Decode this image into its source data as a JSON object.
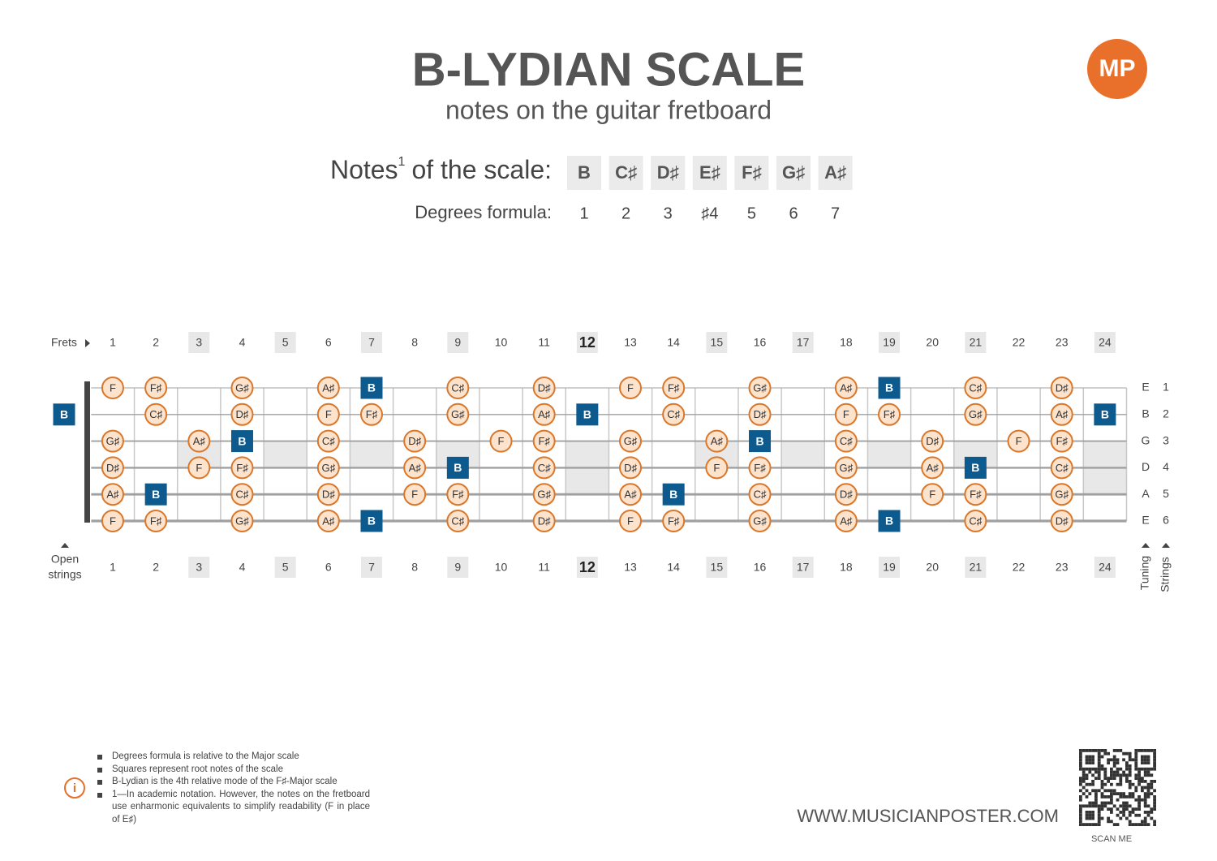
{
  "header": {
    "title": "B-LYDIAN SCALE",
    "subtitle": "notes on the guitar fretboard",
    "logo": "MP"
  },
  "scale": {
    "notes_label": "Notes",
    "notes_label_sup": "1",
    "notes_label_rest": "of the scale:",
    "notes": [
      "B",
      "C♯",
      "D♯",
      "E♯",
      "F♯",
      "G♯",
      "A♯"
    ],
    "degrees_label": "Degrees formula:",
    "degrees": [
      "1",
      "2",
      "3",
      "♯4",
      "5",
      "6",
      "7"
    ]
  },
  "fretboard": {
    "frets_label": "Frets",
    "open_label_lines": [
      "Open",
      "strings"
    ],
    "tuning_label": "Tuning",
    "strings_label": "Strings",
    "fret_numbers": [
      1,
      2,
      3,
      4,
      5,
      6,
      7,
      8,
      9,
      10,
      11,
      12,
      13,
      14,
      15,
      16,
      17,
      18,
      19,
      20,
      21,
      22,
      23,
      24
    ],
    "marked_frets": [
      3,
      5,
      7,
      9,
      12,
      15,
      17,
      19,
      21,
      24
    ],
    "double_frets": [
      12,
      24
    ],
    "octave_frets": [
      12
    ],
    "strings": [
      {
        "tuning": "E",
        "number": 1,
        "notes": [
          null,
          "F",
          "F♯",
          null,
          "G♯",
          null,
          "A♯",
          "B",
          null,
          "C♯",
          null,
          "D♯",
          null,
          "F",
          "F♯",
          null,
          "G♯",
          null,
          "A♯",
          "B",
          null,
          "C♯",
          null,
          "D♯",
          null
        ]
      },
      {
        "tuning": "B",
        "number": 2,
        "notes": [
          "B",
          null,
          "C♯",
          null,
          "D♯",
          null,
          "F",
          "F♯",
          null,
          "G♯",
          null,
          "A♯",
          "B",
          null,
          "C♯",
          null,
          "D♯",
          null,
          "F",
          "F♯",
          null,
          "G♯",
          null,
          "A♯",
          "B"
        ]
      },
      {
        "tuning": "G",
        "number": 3,
        "notes": [
          null,
          "G♯",
          null,
          "A♯",
          "B",
          null,
          "C♯",
          null,
          "D♯",
          null,
          "F",
          "F♯",
          null,
          "G♯",
          null,
          "A♯",
          "B",
          null,
          "C♯",
          null,
          "D♯",
          null,
          "F",
          "F♯",
          null
        ]
      },
      {
        "tuning": "D",
        "number": 4,
        "notes": [
          null,
          "D♯",
          null,
          "F",
          "F♯",
          null,
          "G♯",
          null,
          "A♯",
          "B",
          null,
          "C♯",
          null,
          "D♯",
          null,
          "F",
          "F♯",
          null,
          "G♯",
          null,
          "A♯",
          "B",
          null,
          "C♯",
          null
        ]
      },
      {
        "tuning": "A",
        "number": 5,
        "notes": [
          null,
          "A♯",
          "B",
          null,
          "C♯",
          null,
          "D♯",
          null,
          "F",
          "F♯",
          null,
          "G♯",
          null,
          "A♯",
          "B",
          null,
          "C♯",
          null,
          "D♯",
          null,
          "F",
          "F♯",
          null,
          "G♯",
          null
        ]
      },
      {
        "tuning": "E",
        "number": 6,
        "notes": [
          null,
          "F",
          "F♯",
          null,
          "G♯",
          null,
          "A♯",
          "B",
          null,
          "C♯",
          null,
          "D♯",
          null,
          "F",
          "F♯",
          null,
          "G♯",
          null,
          "A♯",
          "B",
          null,
          "C♯",
          null,
          "D♯",
          null
        ]
      }
    ]
  },
  "footnotes": [
    "Degrees formula is relative to the Major scale",
    "Squares represent root notes of the scale",
    "B-Lydian is the 4th relative mode of the F♯-Major scale",
    "1—In academic notation. However, the notes on the fretboard use enharmonic equivalents to simplify readability (F in place of E♯)"
  ],
  "footer": {
    "website": "WWW.MUSICIANPOSTER.COM",
    "qr_caption": "SCAN ME"
  }
}
